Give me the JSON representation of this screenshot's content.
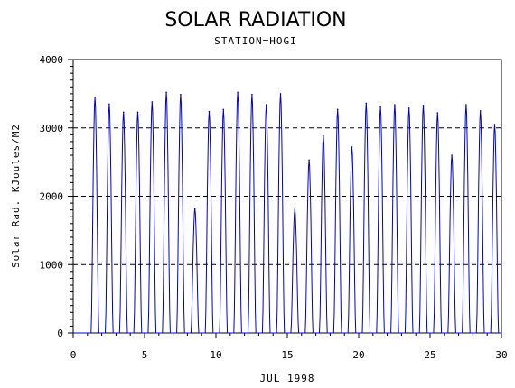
{
  "chart_data": {
    "type": "line",
    "title": "SOLAR RADIATION",
    "subtitle": "STATION=HOGI",
    "xlabel": "JUL 1998",
    "ylabel": "Solar Rad. KJoules/M2",
    "xlim": [
      0,
      30
    ],
    "ylim": [
      0,
      4000
    ],
    "x_ticks": [
      0,
      5,
      10,
      15,
      20,
      25,
      30
    ],
    "y_ticks": [
      0,
      1000,
      2000,
      3000,
      4000
    ],
    "grid": "horizontal dashed",
    "line_color": "#0000cc",
    "daily_peaks": [
      {
        "day": 1,
        "peak": 3450
      },
      {
        "day": 2,
        "peak": 3350
      },
      {
        "day": 3,
        "peak": 3230
      },
      {
        "day": 4,
        "peak": 3230
      },
      {
        "day": 5,
        "peak": 3380
      },
      {
        "day": 6,
        "peak": 3520
      },
      {
        "day": 7,
        "peak": 3490
      },
      {
        "day": 8,
        "peak": 1820
      },
      {
        "day": 9,
        "peak": 3240
      },
      {
        "day": 10,
        "peak": 3270
      },
      {
        "day": 11,
        "peak": 3520
      },
      {
        "day": 12,
        "peak": 3490
      },
      {
        "day": 13,
        "peak": 3340
      },
      {
        "day": 14,
        "peak": 3500
      },
      {
        "day": 15,
        "peak": 1810
      },
      {
        "day": 16,
        "peak": 2530
      },
      {
        "day": 17,
        "peak": 2880
      },
      {
        "day": 18,
        "peak": 3270
      },
      {
        "day": 19,
        "peak": 2720
      },
      {
        "day": 20,
        "peak": 3360
      },
      {
        "day": 21,
        "peak": 3310
      },
      {
        "day": 22,
        "peak": 3340
      },
      {
        "day": 23,
        "peak": 3290
      },
      {
        "day": 24,
        "peak": 3330
      },
      {
        "day": 25,
        "peak": 3220
      },
      {
        "day": 26,
        "peak": 2600
      },
      {
        "day": 27,
        "peak": 3340
      },
      {
        "day": 28,
        "peak": 3250
      },
      {
        "day": 29,
        "peak": 3050
      }
    ]
  }
}
